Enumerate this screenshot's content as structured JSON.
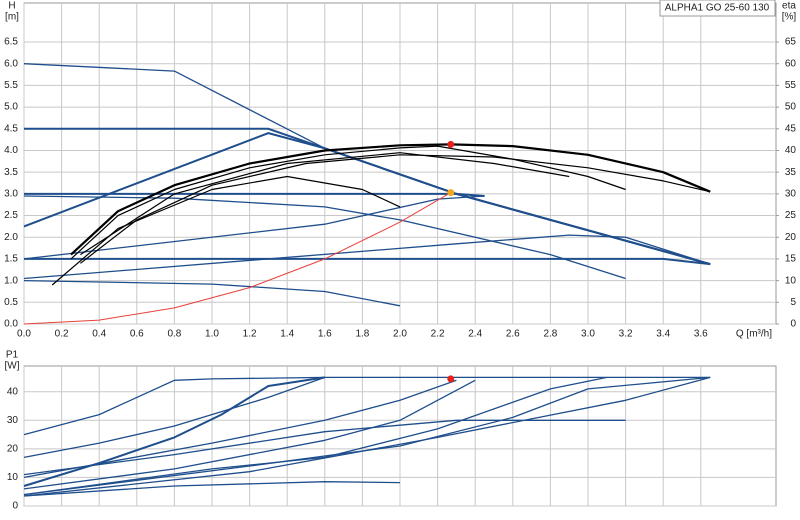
{
  "chart_data": [
    {
      "type": "line",
      "title": "ALPHA1 GO 25-60 130",
      "ylabel": "H",
      "yunit": "[m]",
      "y2label": "eta",
      "y2unit": "[%]",
      "xlabel": "Q [m³/h]",
      "xlim": [
        0,
        4.0
      ],
      "ylim": [
        0,
        7.4
      ],
      "y2lim": [
        0,
        74
      ],
      "grid": true,
      "xticks": [
        {
          "value": 0,
          "label": "0.0"
        },
        0.2,
        0.4,
        0.6,
        0.8,
        {
          "value": 1,
          "label": "1.0"
        },
        1.2,
        1.4,
        1.6,
        1.8,
        {
          "value": 2,
          "label": "2.0"
        },
        2.2,
        2.4,
        2.6,
        2.8,
        {
          "value": 3,
          "label": "3.0"
        },
        3.2,
        3.4,
        3.6
      ],
      "yticks": [
        {
          "value": 0,
          "label": "0.0"
        },
        0.5,
        {
          "value": 1,
          "label": "1.0"
        },
        1.5,
        {
          "value": 2,
          "label": "2.0"
        },
        2.5,
        {
          "value": 3,
          "label": "3.0"
        },
        3.5,
        {
          "value": 4,
          "label": "4.0"
        },
        4.5,
        {
          "value": 5,
          "label": "5.0"
        },
        5.5,
        {
          "value": 6,
          "label": "6.0"
        },
        6.5
      ],
      "y2ticks": [
        0,
        5,
        10,
        15,
        20,
        25,
        30,
        35,
        40,
        45,
        50,
        55,
        60,
        65
      ],
      "series": [
        {
          "color": "#1f4e8c",
          "width": 1.3,
          "x": [
            0,
            0.8,
            1.6,
            2.3,
            3.65
          ],
          "values": [
            6.0,
            5.83,
            4.05,
            3.0,
            1.38
          ]
        },
        {
          "color": "#1f4e8c",
          "width": 2,
          "x": [
            0,
            1.3,
            1.6,
            2.3,
            3.65
          ],
          "values": [
            4.5,
            4.5,
            4.05,
            3.0,
            1.38
          ]
        },
        {
          "color": "#1f4e8c",
          "width": 2,
          "x": [
            0,
            1.3,
            1.6,
            2.3,
            3.65
          ],
          "values": [
            2.25,
            4.4,
            4.05,
            3.0,
            1.38
          ]
        },
        {
          "color": "#1f4e8c",
          "width": 2,
          "x": [
            0,
            2.3,
            2.45
          ],
          "values": [
            3.0,
            3.0,
            2.95
          ]
        },
        {
          "color": "#1f4e8c",
          "width": 1.3,
          "x": [
            0,
            0.8,
            1.6,
            2.0,
            2.8,
            3.2
          ],
          "values": [
            2.95,
            2.9,
            2.7,
            2.4,
            1.6,
            1.05
          ]
        },
        {
          "color": "#1f4e8c",
          "width": 2,
          "x": [
            0,
            3.4,
            3.65
          ],
          "values": [
            1.5,
            1.5,
            1.38
          ]
        },
        {
          "color": "#1f4e8c",
          "width": 1.3,
          "x": [
            0,
            2.3,
            2.9,
            3.2,
            3.65
          ],
          "values": [
            1.05,
            1.85,
            2.05,
            2.0,
            1.38
          ]
        },
        {
          "color": "#1f4e8c",
          "width": 1.3,
          "x": [
            0,
            1.0,
            1.6,
            2.0
          ],
          "values": [
            1.0,
            0.92,
            0.75,
            0.42
          ]
        },
        {
          "color": "#1f4e8c",
          "width": 1.3,
          "x": [
            0,
            1.6,
            2.2,
            2.45
          ],
          "values": [
            1.5,
            2.3,
            2.88,
            2.95
          ]
        },
        {
          "color": "#000000",
          "width": 2.2,
          "axis": "y2",
          "x": [
            0.25,
            0.5,
            0.8,
            1.2,
            1.6,
            2.0,
            2.27,
            2.6,
            3.0,
            3.4,
            3.65
          ],
          "values": [
            16,
            26,
            32,
            37,
            40,
            41.2,
            41.4,
            41,
            39,
            35,
            30.5
          ]
        },
        {
          "color": "#000000",
          "width": 1.2,
          "axis": "y2",
          "x": [
            0.25,
            0.5,
            0.8,
            1.2,
            1.6,
            2.0,
            2.2,
            2.6,
            3.0,
            3.2
          ],
          "values": [
            15,
            25,
            31,
            36,
            39,
            40.6,
            41,
            38,
            34,
            31
          ]
        },
        {
          "color": "#000000",
          "width": 1.2,
          "axis": "y2",
          "x": [
            0.15,
            0.5,
            1.0,
            1.4,
            1.8,
            2.0
          ],
          "values": [
            9,
            22,
            31,
            34,
            31,
            27
          ]
        },
        {
          "color": "#000000",
          "width": 1.2,
          "axis": "y2",
          "x": [
            0.3,
            0.6,
            1.0,
            1.5,
            2.0,
            2.5,
            3.0,
            3.4,
            3.65
          ],
          "values": [
            14,
            24,
            32,
            37,
            39,
            38.5,
            36,
            33,
            30.5
          ]
        },
        {
          "color": "#000000",
          "width": 1.2,
          "axis": "y2",
          "x": [
            0.3,
            0.8,
            1.4,
            2.0,
            2.5,
            2.9
          ],
          "values": [
            16,
            30,
            37,
            39.5,
            37,
            34
          ]
        },
        {
          "color": "#e8403a",
          "width": 1,
          "x": [
            0,
            0.4,
            0.8,
            1.2,
            1.6,
            2.0,
            2.27
          ],
          "values": [
            0,
            0.09,
            0.37,
            0.84,
            1.5,
            2.35,
            3.03
          ]
        }
      ],
      "markers": [
        {
          "x": 2.27,
          "value": 41.4,
          "axis": "y2",
          "color": "#e8201a"
        },
        {
          "x": 2.27,
          "value": 3.03,
          "color": "#f5a623"
        }
      ]
    },
    {
      "type": "line",
      "ylabel": "P1",
      "yunit": "[W]",
      "xlim": [
        0,
        4.0
      ],
      "ylim": [
        0,
        49
      ],
      "grid": true,
      "xticks": [
        0,
        0.2,
        0.4,
        0.6,
        0.8,
        1,
        1.2,
        1.4,
        1.6,
        1.8,
        2,
        2.2,
        2.4,
        2.6,
        2.8,
        3,
        3.2,
        3.4,
        3.6
      ],
      "yticks": [
        0,
        10,
        20,
        30,
        40
      ],
      "series": [
        {
          "color": "#1f4e8c",
          "width": 1.3,
          "x": [
            0,
            0.4,
            0.8,
            1.0,
            1.6,
            3.65
          ],
          "values": [
            25,
            32,
            44,
            44.5,
            45,
            45
          ]
        },
        {
          "color": "#1f4e8c",
          "width": 1.3,
          "x": [
            0,
            0.4,
            0.8,
            1.3,
            1.6
          ],
          "values": [
            17,
            22,
            28,
            38,
            45
          ]
        },
        {
          "color": "#1f4e8c",
          "width": 2,
          "x": [
            0,
            0.4,
            0.8,
            1.05,
            1.3,
            1.6
          ],
          "values": [
            7,
            15,
            24,
            32,
            42,
            45
          ]
        },
        {
          "color": "#1f4e8c",
          "width": 1.3,
          "x": [
            0,
            0.5,
            1.0,
            1.6,
            2.0,
            2.3
          ],
          "values": [
            10,
            16,
            22,
            30,
            37,
            44
          ]
        },
        {
          "color": "#1f4e8c",
          "width": 1.3,
          "x": [
            0,
            0.8,
            1.6,
            2.0,
            2.4
          ],
          "values": [
            6,
            13,
            23,
            30,
            44
          ]
        },
        {
          "color": "#1f4e8c",
          "width": 1.3,
          "x": [
            0,
            1.0,
            1.6,
            2.2,
            2.8,
            3.1
          ],
          "values": [
            4,
            13,
            17,
            27,
            41,
            45
          ]
        },
        {
          "color": "#1f4e8c",
          "width": 1.3,
          "x": [
            0,
            1.2,
            2.0,
            2.6,
            3.0,
            3.65
          ],
          "values": [
            4,
            14,
            21,
            31,
            41,
            45
          ]
        },
        {
          "color": "#1f4e8c",
          "width": 1.3,
          "x": [
            0,
            1.2,
            2.2,
            3.2,
            3.65
          ],
          "values": [
            3.5,
            12,
            24,
            37,
            45
          ]
        },
        {
          "color": "#1f4e8c",
          "width": 1.3,
          "x": [
            0,
            0.8,
            1.6,
            2.3,
            3.2
          ],
          "values": [
            11,
            18,
            26,
            30,
            30
          ]
        },
        {
          "color": "#1f4e8c",
          "width": 1.3,
          "x": [
            0,
            0.8,
            1.6,
            2.0
          ],
          "values": [
            3.5,
            7,
            8.5,
            8.2
          ]
        }
      ],
      "markers": [
        {
          "x": 2.27,
          "value": 44.5,
          "color": "#e8201a"
        }
      ]
    }
  ]
}
